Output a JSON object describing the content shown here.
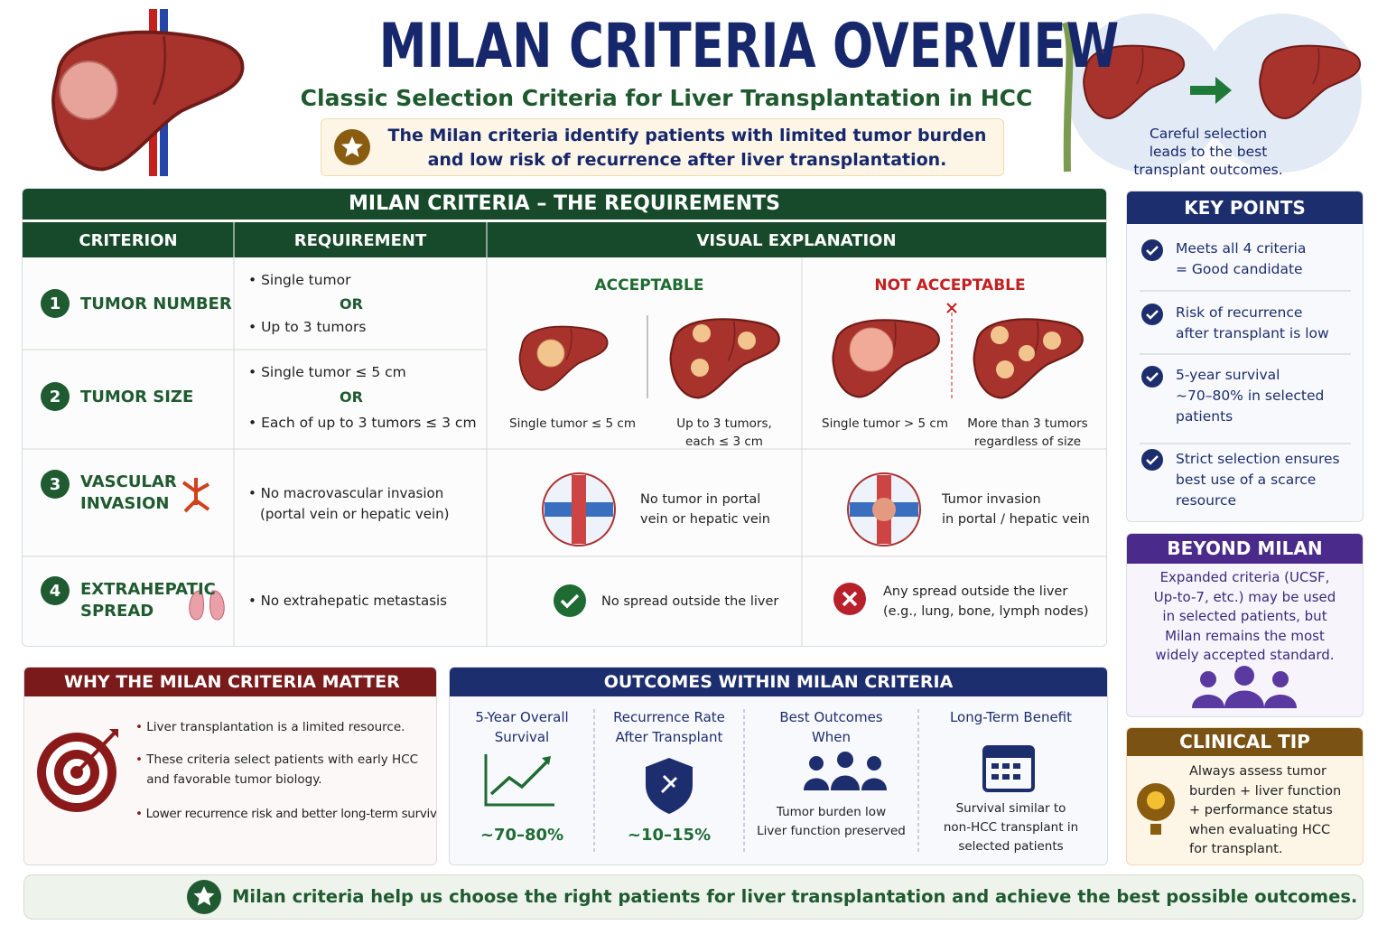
{
  "header": {
    "title": "MILAN CRITERIA OVERVIEW",
    "subtitle": "Classic Selection Criteria for Liver Transplantation in HCC",
    "summary": [
      "The Milan criteria identify patients with limited tumor burden",
      "and low risk of recurrence after liver transplantation."
    ],
    "side_caption": [
      "Careful selection",
      "leads to the best",
      "transplant outcomes."
    ]
  },
  "requirements": {
    "title": "MILAN CRITERIA – THE REQUIREMENTS",
    "columns": [
      "CRITERION",
      "REQUIREMENT",
      "VISUAL EXPLANATION"
    ],
    "acceptable": "ACCEPTABLE",
    "not_acceptable": "NOT ACCEPTABLE",
    "rows": [
      {
        "number": "1",
        "name": [
          "TUMOR NUMBER"
        ],
        "requirement": [
          "Single tumor",
          "OR",
          "Up to 3 tumors"
        ]
      },
      {
        "number": "2",
        "name": [
          "TUMOR SIZE"
        ],
        "requirement": [
          "Single tumor ≤ 5 cm",
          "OR",
          "Each of up to 3 tumors ≤ 3 cm"
        ]
      },
      {
        "number": "3",
        "name": [
          "VASCULAR",
          "INVASION"
        ],
        "requirement": [
          "No macrovascular invasion",
          "(portal vein or hepatic vein)"
        ]
      },
      {
        "number": "4",
        "name": [
          "EXTRAHEPATIC",
          "SPREAD"
        ],
        "requirement": [
          "No extrahepatic metastasis"
        ]
      }
    ],
    "visuals": {
      "tumor": {
        "acceptable": [
          [
            "Single tumor ≤ 5 cm"
          ],
          [
            "Up to 3 tumors,",
            "each ≤ 3 cm"
          ]
        ],
        "not_acceptable": [
          [
            "Single tumor > 5 cm"
          ],
          [
            "More than 3 tumors",
            "regardless of size"
          ]
        ]
      },
      "vascular": {
        "acceptable": [
          "No tumor in portal",
          "vein or hepatic vein"
        ],
        "not_acceptable": [
          "Tumor invasion",
          "in portal / hepatic vein"
        ]
      },
      "extrahepatic": {
        "acceptable": [
          "No spread outside the liver"
        ],
        "not_acceptable": [
          "Any spread outside the liver",
          "(e.g., lung, bone, lymph nodes)"
        ]
      }
    }
  },
  "key_points": {
    "title": "KEY POINTS",
    "items": [
      [
        "Meets all 4 criteria",
        "= Good candidate"
      ],
      [
        "Risk of recurrence",
        "after transplant is low"
      ],
      [
        "5-year survival",
        "~70–80% in selected",
        "patients"
      ],
      [
        "Strict selection ensures",
        "best use of a scarce",
        "resource"
      ]
    ]
  },
  "beyond_milan": {
    "title": "BEYOND MILAN",
    "text": [
      "Expanded criteria (UCSF,",
      "Up-to-7, etc.) may be used",
      "in selected patients, but",
      "Milan remains the most",
      "widely accepted standard."
    ]
  },
  "clinical_tip": {
    "title": "CLINICAL TIP",
    "text": [
      "Always assess tumor",
      "burden + liver function",
      "+ performance status",
      "when evaluating HCC",
      "for transplant."
    ]
  },
  "why": {
    "title": "WHY THE MILAN CRITERIA MATTER",
    "bullets": [
      [
        "Liver transplantation is a limited resource."
      ],
      [
        "These criteria select patients with early HCC",
        "and favorable tumor biology."
      ],
      [
        "Lower recurrence risk and better long-term survival."
      ]
    ]
  },
  "outcomes": {
    "title": "OUTCOMES WITHIN MILAN CRITERIA",
    "columns": [
      {
        "heading": [
          "5-Year Overall",
          "Survival"
        ],
        "value": "~70–80%"
      },
      {
        "heading": [
          "Recurrence Rate",
          "After Transplant"
        ],
        "value": "~10–15%"
      },
      {
        "heading": [
          "Best Outcomes",
          "When"
        ],
        "caption": [
          "Tumor burden low",
          "Liver function preserved"
        ]
      },
      {
        "heading": [
          "Long-Term Benefit"
        ],
        "caption": [
          "Survival similar to",
          "non-HCC transplant in",
          "selected patients"
        ]
      }
    ]
  },
  "footer": {
    "text": "Milan criteria help us choose the right patients for liver transplantation and achieve the best possible outcomes."
  }
}
